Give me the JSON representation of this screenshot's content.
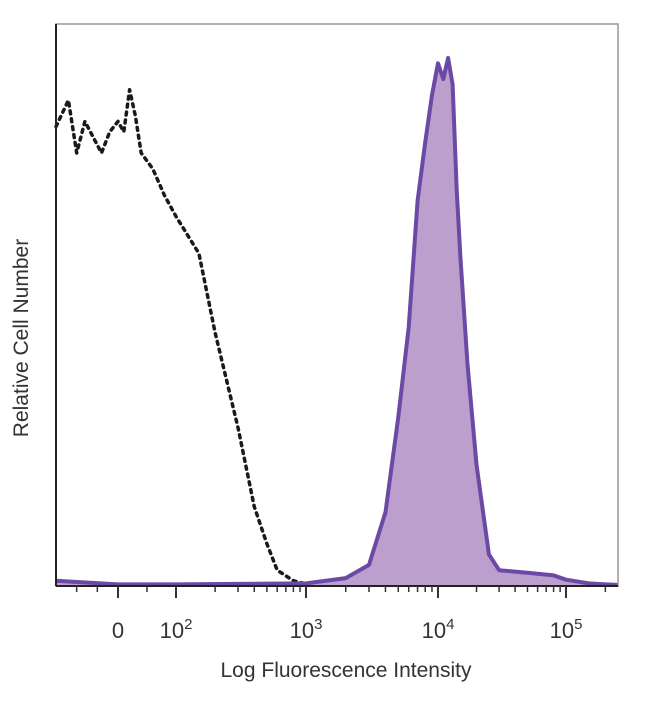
{
  "chart_data": {
    "type": "area",
    "title": "",
    "xlabel": "Log Fluorescence Intensity",
    "ylabel": "Relative Cell Number",
    "x_scale": "biexponential (log)",
    "xlim": [
      -150,
      250000
    ],
    "ylim": [
      0,
      1
    ],
    "tick_labels": [
      {
        "value": 0,
        "base": "0",
        "exp": ""
      },
      {
        "value": 100,
        "base": "10",
        "exp": "2"
      },
      {
        "value": 1000,
        "base": "10",
        "exp": "3"
      },
      {
        "value": 10000,
        "base": "10",
        "exp": "4"
      },
      {
        "value": 100000,
        "base": "10",
        "exp": "5"
      }
    ],
    "grid": false,
    "legend": "none",
    "series": [
      {
        "style": "dotted-outline",
        "color": "#1a1a1a",
        "x": [
          -150,
          -120,
          -100,
          -80,
          -60,
          -40,
          -20,
          0,
          10,
          20,
          30,
          40,
          60,
          80,
          100,
          150,
          200,
          300,
          400,
          500,
          600,
          800,
          1000,
          2000,
          5000,
          10000,
          20000,
          50000,
          100000,
          200000
        ],
        "y": [
          0.87,
          0.92,
          0.82,
          0.88,
          0.85,
          0.82,
          0.86,
          0.88,
          0.86,
          0.94,
          0.89,
          0.82,
          0.79,
          0.74,
          0.7,
          0.63,
          0.48,
          0.3,
          0.15,
          0.08,
          0.03,
          0.01,
          0.004,
          0.003,
          0.003,
          0.003,
          0.003,
          0.003,
          0.003,
          0.003
        ]
      },
      {
        "style": "filled",
        "color": "#6a4aa5",
        "fill": "#bc9fcc",
        "x": [
          -150,
          0,
          100,
          1000,
          2000,
          3000,
          4000,
          5000,
          6000,
          7000,
          8000,
          9000,
          10000,
          11000,
          12000,
          13000,
          14000,
          15000,
          17000,
          20000,
          25000,
          30000,
          50000,
          80000,
          100000,
          150000,
          200000,
          250000
        ],
        "y": [
          0.01,
          0.003,
          0.003,
          0.005,
          0.015,
          0.04,
          0.14,
          0.32,
          0.49,
          0.73,
          0.84,
          0.93,
          0.99,
          0.96,
          1.0,
          0.95,
          0.75,
          0.62,
          0.42,
          0.23,
          0.06,
          0.03,
          0.025,
          0.02,
          0.012,
          0.005,
          0.003,
          0.002
        ]
      }
    ]
  }
}
